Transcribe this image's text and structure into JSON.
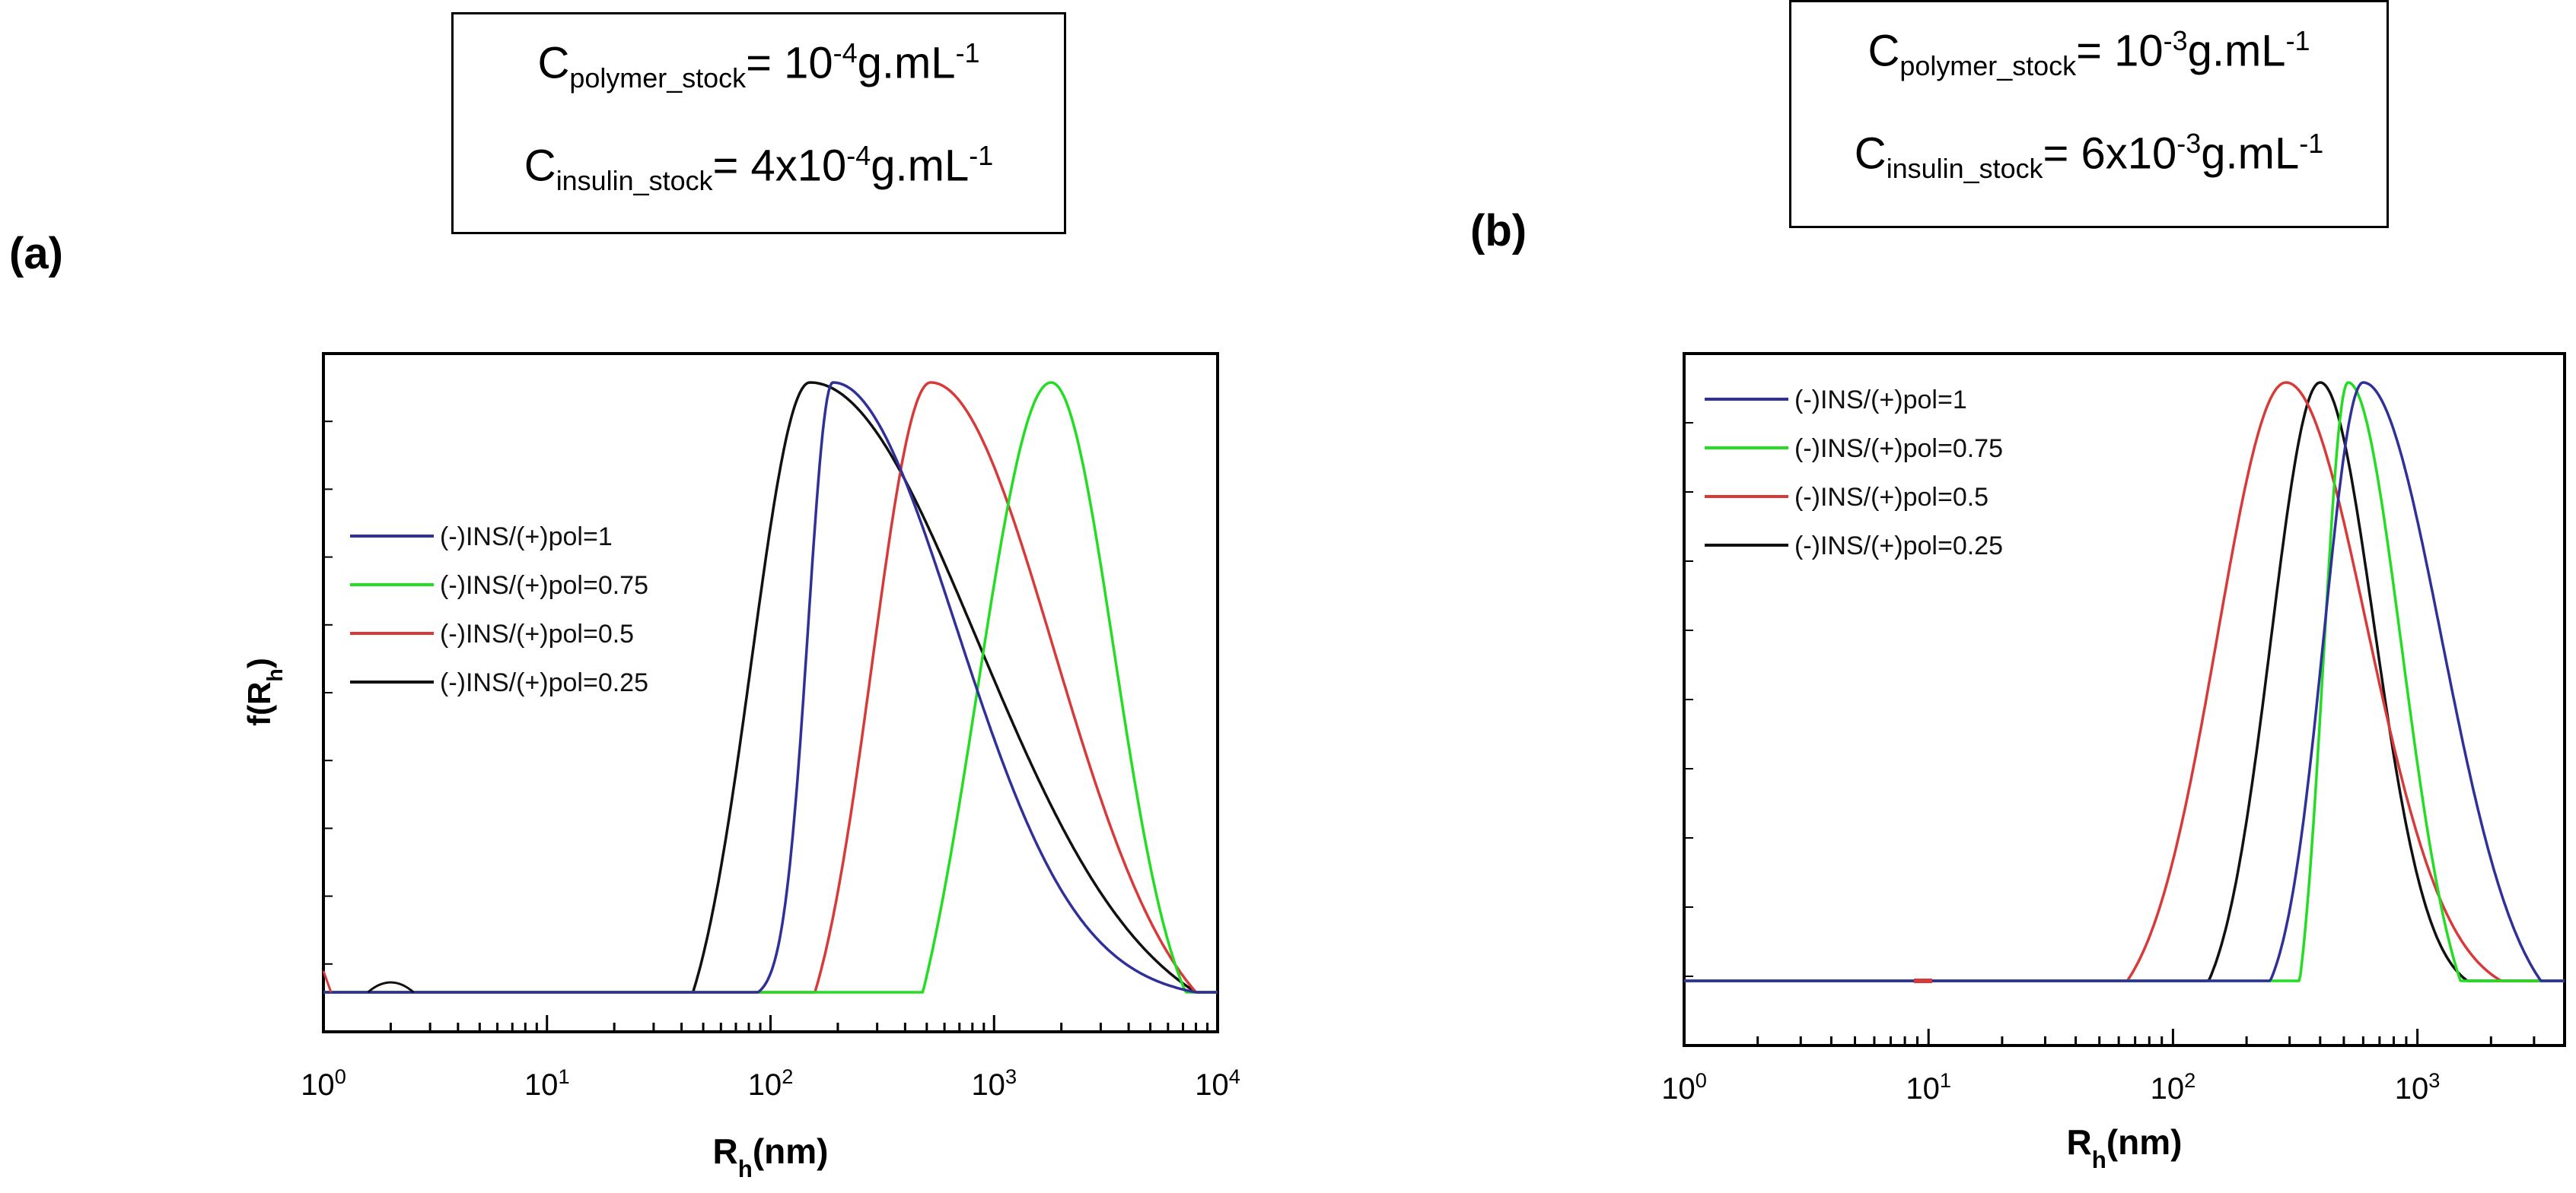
{
  "panel_a": {
    "label": "(a)",
    "box": {
      "line1": {
        "c": "C",
        "sub": "polymer_stock",
        "eq": "=  10",
        "sup": "-4",
        "unit": "g.mL",
        "unit_sup": "-1"
      },
      "line2": {
        "c": "C",
        "sub": "insulin_stock",
        "eq": "=  4x10",
        "sup": "-4",
        "unit": "g.mL",
        "unit_sup": "-1"
      }
    }
  },
  "panel_b": {
    "label": "(b)",
    "box": {
      "line1": {
        "c": "C",
        "sub": "polymer_stock",
        "eq": "=  10",
        "sup": "-3",
        "unit": "g.mL",
        "unit_sup": "-1"
      },
      "line2": {
        "c": "C",
        "sub": "insulin_stock",
        "eq": "=  6x10",
        "sup": "-3",
        "unit": "g.mL",
        "unit_sup": "-1"
      }
    }
  },
  "colors": {
    "ratio_1": "#2f3199",
    "ratio_075": "#22dd22",
    "ratio_05": "#d83a3a",
    "ratio_025": "#111111"
  },
  "chart_data": [
    {
      "id": "a",
      "type": "line",
      "xscale": "log",
      "xlim": [
        1,
        10000
      ],
      "ylim": [
        -0.06,
        1.0
      ],
      "ylabel": "f(R",
      "ylabel_sub": "h",
      "ylabel_end": ")",
      "xlabel": "R",
      "xlabel_sub": "h",
      "xlabel_end": "(nm)",
      "xticks": [
        {
          "v": 1,
          "base": "10",
          "exp": "0"
        },
        {
          "v": 10,
          "base": "10",
          "exp": "1"
        },
        {
          "v": 100,
          "base": "10",
          "exp": "2"
        },
        {
          "v": 1000,
          "base": "10",
          "exp": "3"
        },
        {
          "v": 10000,
          "base": "10",
          "exp": "4"
        }
      ],
      "legend_position": "middle-left",
      "series": [
        {
          "name": "(-)INS/(+)pol=1",
          "color": "#2f3199",
          "peak": 190,
          "start": 88,
          "end": 8000,
          "w_left": 0.11,
          "w_right": 0.55
        },
        {
          "name": "(-)INS/(+)pol=0.75",
          "color": "#22dd22",
          "peak": 1800,
          "start": 480,
          "end": 7200,
          "w_left": 0.33,
          "w_right": 0.28
        },
        {
          "name": "(-)INS/(+)pol=0.5",
          "color": "#d83a3a",
          "peak": 520,
          "start": 158,
          "end": 8000,
          "w_left": 0.26,
          "w_right": 0.55
        },
        {
          "name": "(-)INS/(+)pol=0.25",
          "color": "#111111",
          "peak": 150,
          "start": 45,
          "end": 8000,
          "w_left": 0.26,
          "w_right": 0.75
        }
      ]
    },
    {
      "id": "b",
      "type": "line",
      "xscale": "log",
      "xlim": [
        1,
        4000
      ],
      "ylim": [
        -0.1,
        1.0
      ],
      "xlabel": "R",
      "xlabel_sub": "h",
      "xlabel_end": "(nm)",
      "xticks": [
        {
          "v": 1,
          "base": "10",
          "exp": "0"
        },
        {
          "v": 10,
          "base": "10",
          "exp": "1"
        },
        {
          "v": 100,
          "base": "10",
          "exp": "2"
        },
        {
          "v": 1000,
          "base": "10",
          "exp": "3"
        }
      ],
      "legend_position": "top-left",
      "series": [
        {
          "name": "(-)INS/(+)pol=1",
          "color": "#2f3199",
          "peak": 600,
          "start": 250,
          "end": 3200,
          "w_left": 0.16,
          "w_right": 0.32
        },
        {
          "name": "(-)INS/(+)pol=0.75",
          "color": "#22dd22",
          "peak": 520,
          "start": 330,
          "end": 1500,
          "w_left": 0.1,
          "w_right": 0.22
        },
        {
          "name": "(-)INS/(+)pol=0.5",
          "color": "#d83a3a",
          "peak": 290,
          "start": 65,
          "end": 2200,
          "w_left": 0.28,
          "w_right": 0.33
        },
        {
          "name": "(-)INS/(+)pol=0.25",
          "color": "#111111",
          "peak": 400,
          "start": 140,
          "end": 1600,
          "w_left": 0.2,
          "w_right": 0.22
        }
      ]
    }
  ]
}
